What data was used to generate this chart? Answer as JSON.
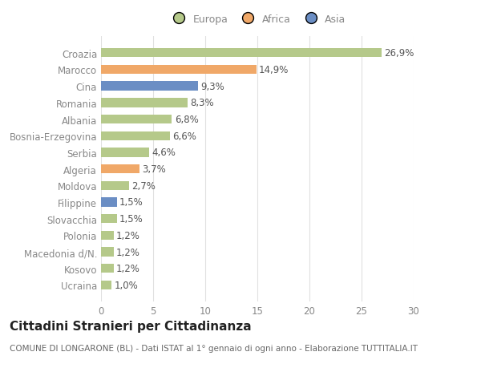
{
  "categories": [
    "Ucraina",
    "Kosovo",
    "Macedonia d/N.",
    "Polonia",
    "Slovacchia",
    "Filippine",
    "Moldova",
    "Algeria",
    "Serbia",
    "Bosnia-Erzegovina",
    "Albania",
    "Romania",
    "Cina",
    "Marocco",
    "Croazia"
  ],
  "values": [
    1.0,
    1.2,
    1.2,
    1.2,
    1.5,
    1.5,
    2.7,
    3.7,
    4.6,
    6.6,
    6.8,
    8.3,
    9.3,
    14.9,
    26.9
  ],
  "labels": [
    "1,0%",
    "1,2%",
    "1,2%",
    "1,2%",
    "1,5%",
    "1,5%",
    "2,7%",
    "3,7%",
    "4,6%",
    "6,6%",
    "6,8%",
    "8,3%",
    "9,3%",
    "14,9%",
    "26,9%"
  ],
  "colors": [
    "#b5c98a",
    "#b5c98a",
    "#b5c98a",
    "#b5c98a",
    "#b5c98a",
    "#6b8ec4",
    "#b5c98a",
    "#f0a868",
    "#b5c98a",
    "#b5c98a",
    "#b5c98a",
    "#b5c98a",
    "#6b8ec4",
    "#f0a868",
    "#b5c98a"
  ],
  "legend_labels": [
    "Europa",
    "Africa",
    "Asia"
  ],
  "legend_colors": [
    "#b5c98a",
    "#f0a868",
    "#6b8ec4"
  ],
  "title": "Cittadini Stranieri per Cittadinanza",
  "subtitle": "COMUNE DI LONGARONE (BL) - Dati ISTAT al 1° gennaio di ogni anno - Elaborazione TUTTITALIA.IT",
  "xlim": [
    0,
    30
  ],
  "xticks": [
    0,
    5,
    10,
    15,
    20,
    25,
    30
  ],
  "background_color": "#ffffff",
  "grid_color": "#e0e0e0",
  "text_color": "#888888",
  "bar_label_color": "#555555",
  "title_color": "#222222",
  "subtitle_color": "#666666",
  "label_fontsize": 8.5,
  "value_fontsize": 8.5,
  "title_fontsize": 11,
  "subtitle_fontsize": 7.5,
  "legend_fontsize": 9
}
